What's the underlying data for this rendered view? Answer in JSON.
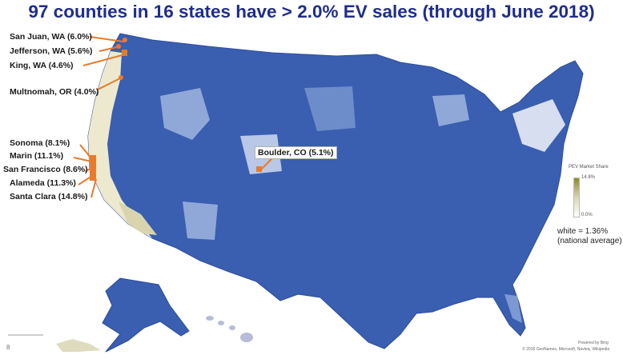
{
  "title": "97 counties in 16 states have > 2.0% EV sales (through June 2018)",
  "colors": {
    "title": "#1f2d8a",
    "map_fill": "#3a5eb0",
    "map_dark": "#2c4d9e",
    "map_light": "#a9bde0",
    "low_share": "#ffffff",
    "high_share": "#8c8a2c",
    "callout": "#e97a2b"
  },
  "counties": [
    {
      "label": "San Juan, WA (6.0%)"
    },
    {
      "label": "Jefferson, WA (5.6%)"
    },
    {
      "label": "King, WA (4.6%)"
    },
    {
      "label": "Multnomah, OR (4.0%)"
    },
    {
      "label": "Sonoma (8.1%)"
    },
    {
      "label": "Marin (11.1%)"
    },
    {
      "label": "San Francisco (8.6%)"
    },
    {
      "label": "Alameda (11.3%)"
    },
    {
      "label": "Santa Clara (14.8%)"
    },
    {
      "label": "Boulder, CO (5.1%)"
    }
  ],
  "legend": {
    "title": "PEV Market Share",
    "max": "14.8%",
    "min": "0.0%",
    "note_line1": "white = 1.36%",
    "note_line2": "(national average)"
  },
  "footer": {
    "powered": "Powered by Bing",
    "credit": "© 2018 GeoNames, Microsoft, Navteq, Wikipedia",
    "page": "8"
  }
}
